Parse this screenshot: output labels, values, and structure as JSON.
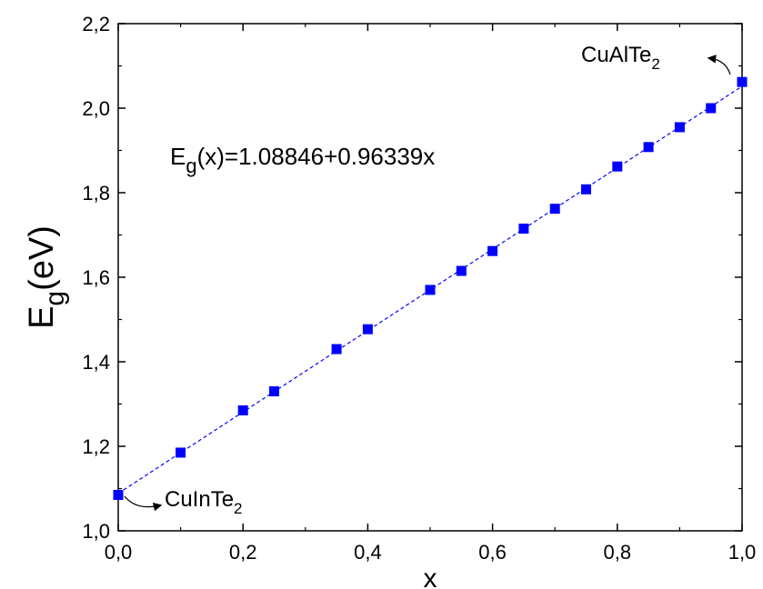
{
  "chart_data": {
    "type": "scatter",
    "xlabel": "x",
    "ylabel": {
      "main": "E",
      "sub": "g",
      "rest": "(eV)"
    },
    "xlim": [
      0.0,
      1.0
    ],
    "ylim": [
      1.0,
      2.2
    ],
    "x_ticks": [
      {
        "value": 0.0,
        "label": "0,0"
      },
      {
        "value": 0.2,
        "label": "0,2"
      },
      {
        "value": 0.4,
        "label": "0,4"
      },
      {
        "value": 0.6,
        "label": "0,6"
      },
      {
        "value": 0.8,
        "label": "0,8"
      },
      {
        "value": 1.0,
        "label": "1,0"
      }
    ],
    "y_ticks": [
      {
        "value": 1.0,
        "label": "1,0"
      },
      {
        "value": 1.2,
        "label": "1,2"
      },
      {
        "value": 1.4,
        "label": "1,4"
      },
      {
        "value": 1.6,
        "label": "1,6"
      },
      {
        "value": 1.8,
        "label": "1,8"
      },
      {
        "value": 2.0,
        "label": "2,0"
      },
      {
        "value": 2.2,
        "label": "2,2"
      }
    ],
    "grid": false,
    "marker_color": "#0000ff",
    "line_color": "#0000ff",
    "series": [
      {
        "x": [
          0.0,
          0.1,
          0.2,
          0.25,
          0.35,
          0.4,
          0.5,
          0.55,
          0.6,
          0.65,
          0.7,
          0.75,
          0.8,
          0.85,
          0.9,
          0.95,
          1.0
        ],
        "y": [
          1.085,
          1.185,
          1.285,
          1.33,
          1.43,
          1.477,
          1.57,
          1.615,
          1.662,
          1.715,
          1.762,
          1.808,
          1.862,
          1.908,
          1.955,
          2.0,
          2.062
        ]
      }
    ],
    "fit": {
      "intercept": 1.08846,
      "slope": 0.96339,
      "style": "dashed"
    },
    "annotations": {
      "equation": {
        "main": "E",
        "sub": "g",
        "rest": "(x)=1.08846+0.96339x"
      },
      "left_label": {
        "main": "CuInTe",
        "sub": "2"
      },
      "right_label": {
        "main": "CuAlTe",
        "sub": "2"
      }
    }
  }
}
